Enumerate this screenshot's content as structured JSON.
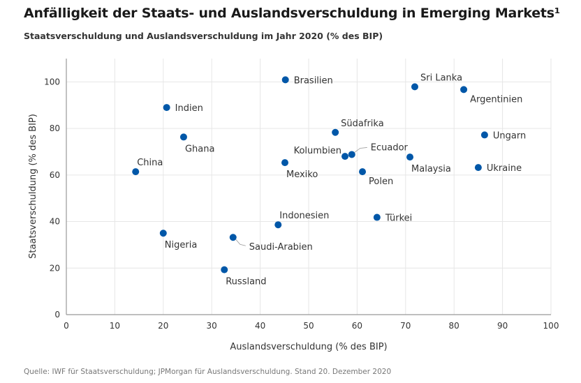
{
  "title": "Anfälligkeit der Staats- und Auslandsverschuldung in Emerging Markets¹",
  "subtitle": "Staatsverschuldung und Auslandsverschuldung im Jahr 2020 (% des BIP)",
  "source": "Quelle: IWF für Staatsverschuldung; JPMorgan für Auslandsverschuldung. Stand 20. Dezember 2020",
  "colors": {
    "point": "#0057a8",
    "grid": "#e6e6e6",
    "axis": "#999999"
  },
  "chart_data": {
    "type": "scatter",
    "title": "Anfälligkeit der Staats- und Auslandsverschuldung in Emerging Markets¹",
    "subtitle": "Staatsverschuldung und Auslandsverschuldung im Jahr 2020 (% des BIP)",
    "xlabel": "Auslandsverschuldung (% des BIP)",
    "ylabel": "Staatsverschuldung (% des BIP)",
    "xlim": [
      0,
      100
    ],
    "ylim": [
      0,
      110
    ],
    "xticks": [
      0,
      10,
      20,
      30,
      40,
      50,
      60,
      70,
      80,
      90,
      100
    ],
    "yticks": [
      0,
      20,
      40,
      60,
      80,
      100
    ],
    "grid": true,
    "points": [
      {
        "label": "Brasilien",
        "x": 45.2,
        "y": 100.9,
        "pos": "right"
      },
      {
        "label": "Sri Lanka",
        "x": 71.9,
        "y": 97.9,
        "pos": "top-right"
      },
      {
        "label": "Argentinien",
        "x": 82.0,
        "y": 96.7,
        "pos": "bottom-right"
      },
      {
        "label": "Indien",
        "x": 20.7,
        "y": 89.0,
        "pos": "right"
      },
      {
        "label": "Südafrika",
        "x": 55.5,
        "y": 78.3,
        "pos": "top-right"
      },
      {
        "label": "Ungarn",
        "x": 86.3,
        "y": 77.2,
        "pos": "right"
      },
      {
        "label": "Ghana",
        "x": 24.2,
        "y": 76.3,
        "pos": "bottom"
      },
      {
        "label": "Ecuador",
        "x": 58.9,
        "y": 68.8,
        "pos": "leader-top-right"
      },
      {
        "label": "Kolumbien",
        "x": 57.5,
        "y": 68.0,
        "pos": "top-left"
      },
      {
        "label": "Malaysia",
        "x": 70.9,
        "y": 67.7,
        "pos": "bottom"
      },
      {
        "label": "Mexiko",
        "x": 45.1,
        "y": 65.3,
        "pos": "bottom"
      },
      {
        "label": "Ukraine",
        "x": 85.0,
        "y": 63.2,
        "pos": "right"
      },
      {
        "label": "China",
        "x": 14.3,
        "y": 61.4,
        "pos": "top"
      },
      {
        "label": "Polen",
        "x": 61.1,
        "y": 61.4,
        "pos": "bottom-right"
      },
      {
        "label": "Türkei",
        "x": 64.1,
        "y": 41.8,
        "pos": "right"
      },
      {
        "label": "Indonesien",
        "x": 43.7,
        "y": 38.6,
        "pos": "top"
      },
      {
        "label": "Nigeria",
        "x": 20.0,
        "y": 35.0,
        "pos": "bottom"
      },
      {
        "label": "Saudi-Arabien",
        "x": 34.4,
        "y": 33.2,
        "pos": "leader-bottom-right"
      },
      {
        "label": "Russland",
        "x": 32.6,
        "y": 19.3,
        "pos": "bottom"
      }
    ]
  }
}
